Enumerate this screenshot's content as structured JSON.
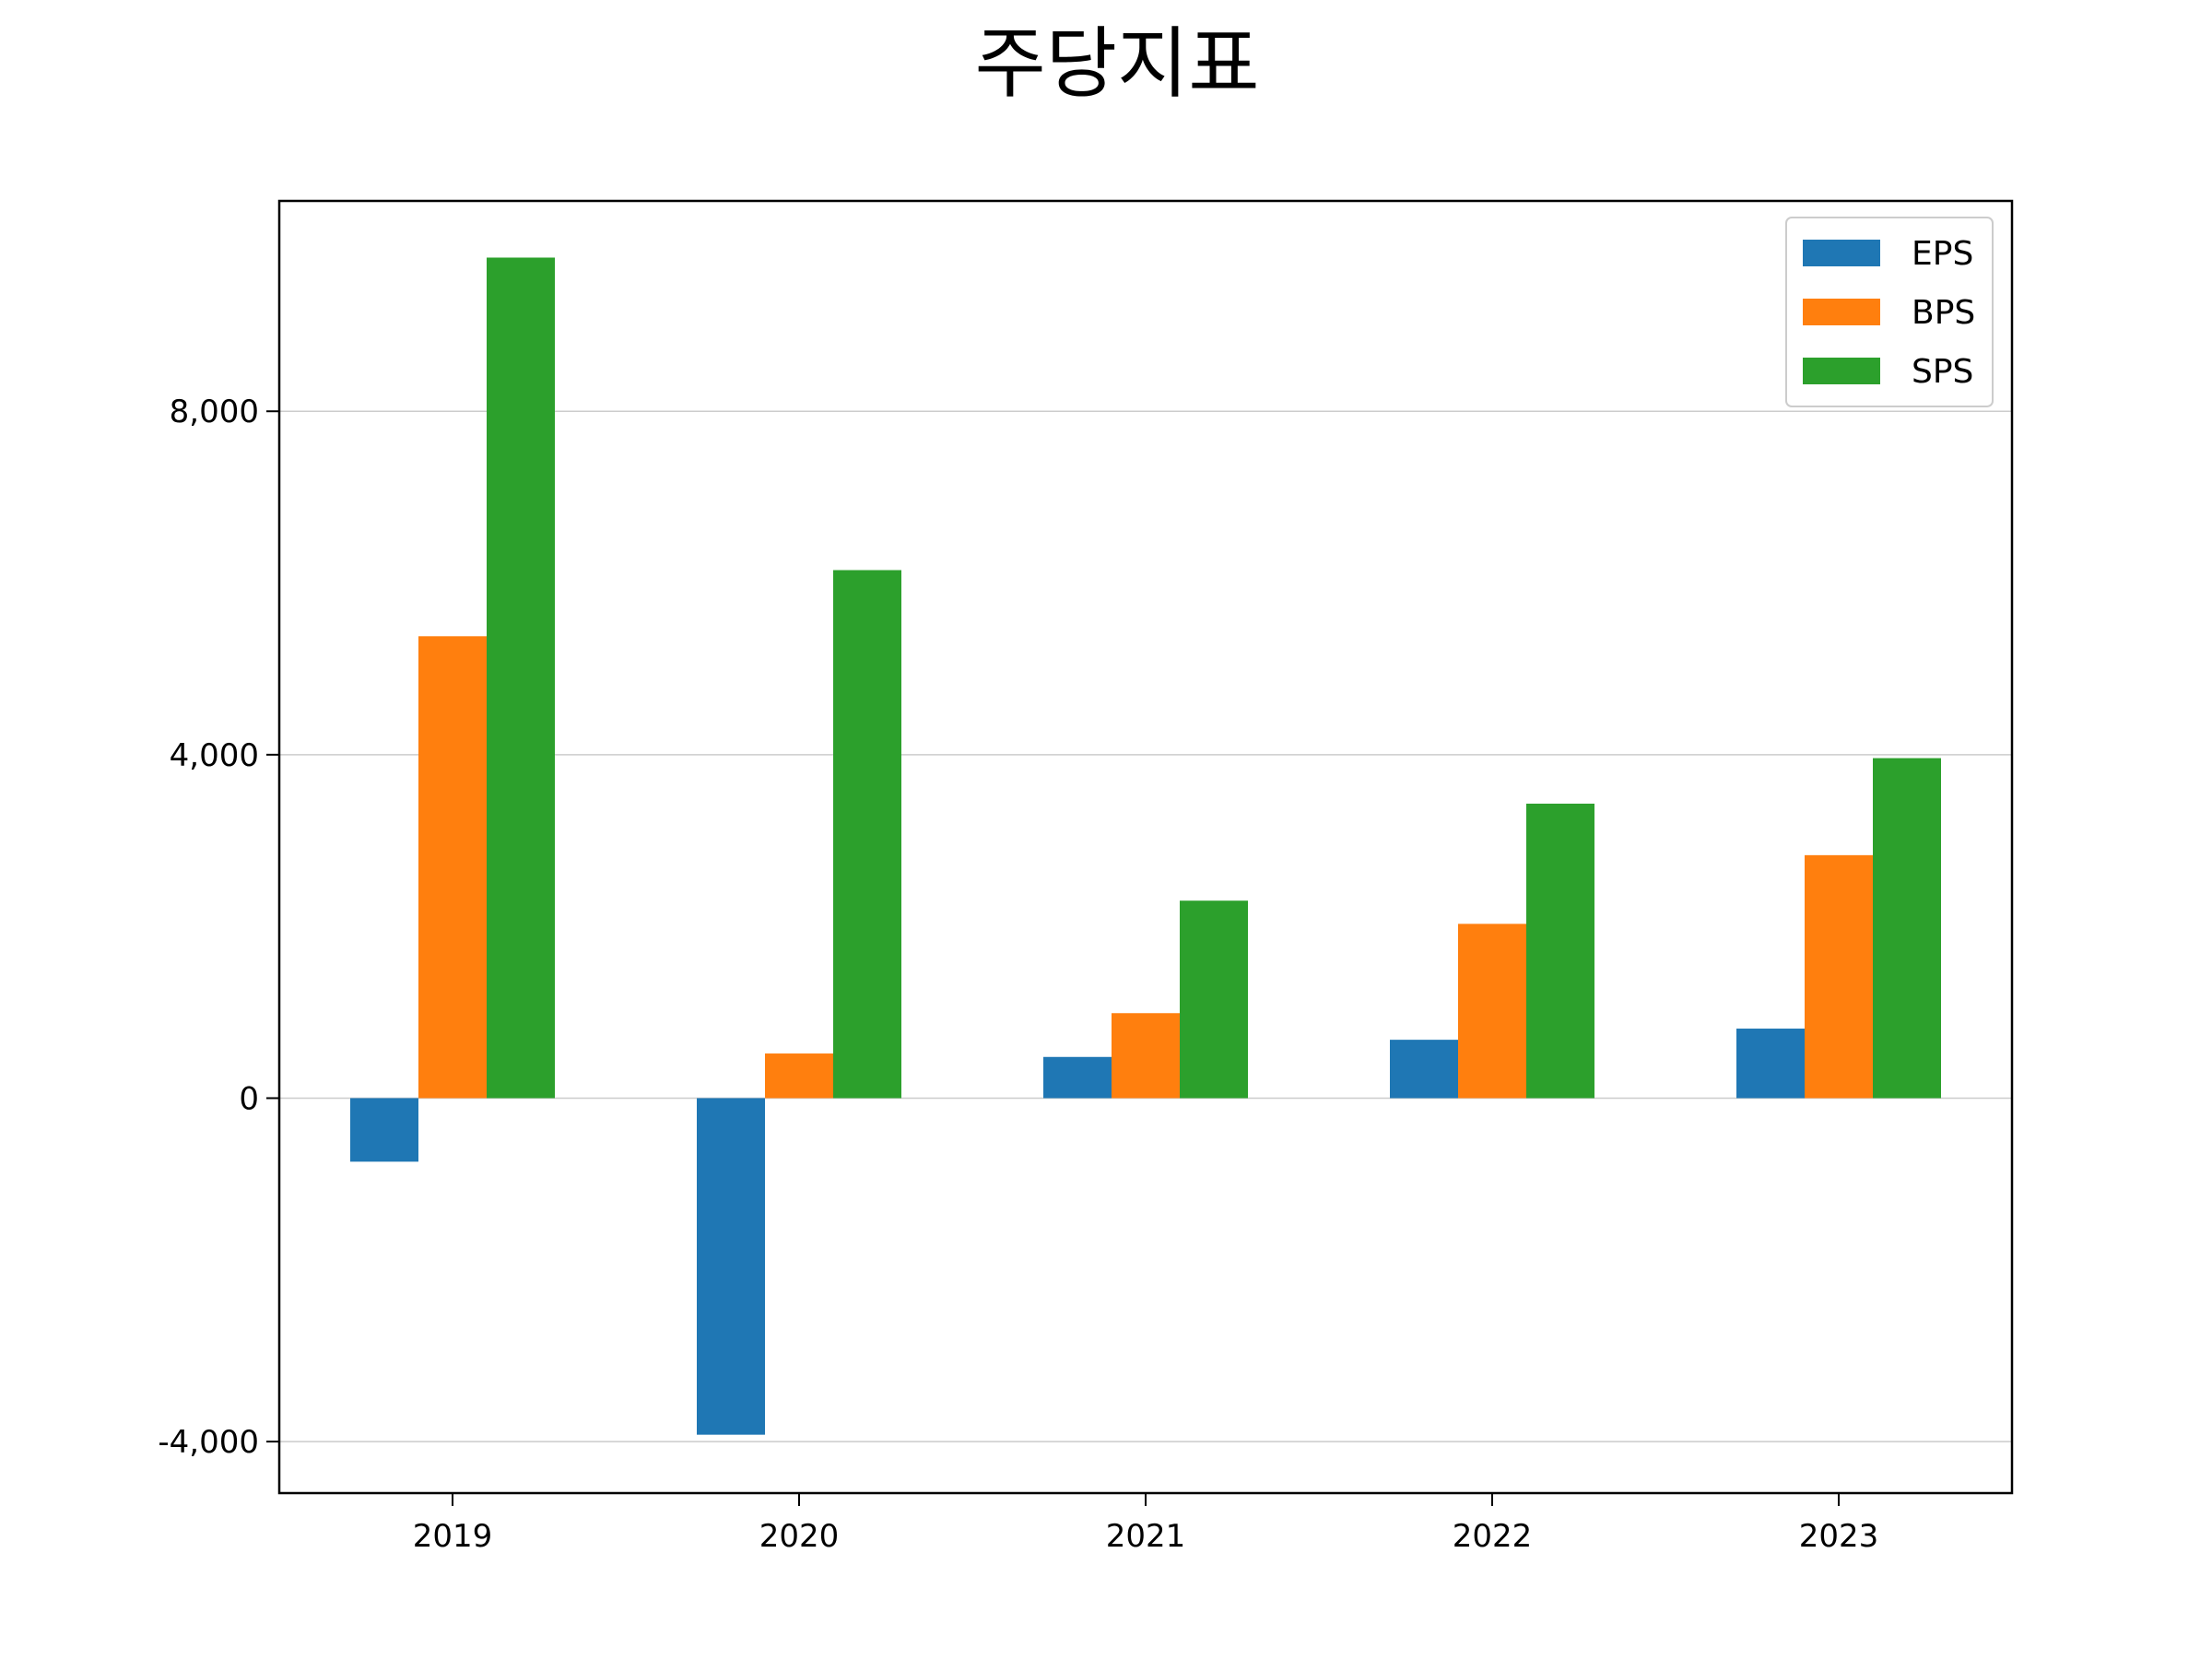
{
  "chart_data": {
    "type": "bar",
    "title": "주당지표",
    "xlabel": "",
    "ylabel": "",
    "categories": [
      "2019",
      "2020",
      "2021",
      "2022",
      "2023"
    ],
    "series": [
      {
        "name": "EPS",
        "color": "#1f77b4",
        "values": [
          -740,
          -3920,
          480,
          680,
          810
        ]
      },
      {
        "name": "BPS",
        "color": "#ff7f0e",
        "values": [
          5380,
          520,
          990,
          2030,
          2830
        ]
      },
      {
        "name": "SPS",
        "color": "#2ca02c",
        "values": [
          9790,
          6150,
          2300,
          3430,
          3960
        ]
      }
    ],
    "ylim": [
      -4600,
      10450
    ],
    "yticks": [
      -4000,
      0,
      4000,
      8000
    ],
    "ytick_labels": [
      "-4,000",
      "0",
      "4,000",
      "8,000"
    ],
    "grid": "horizontal",
    "legend_position": "top-right"
  }
}
